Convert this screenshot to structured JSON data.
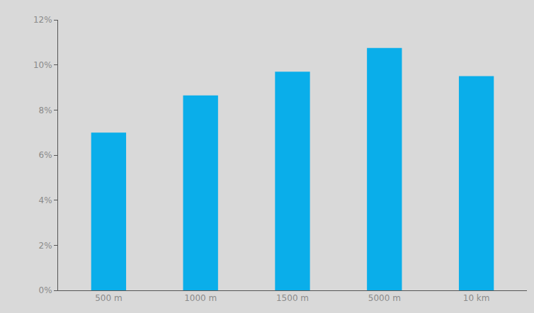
{
  "chart_data": {
    "type": "bar",
    "categories": [
      "500 m",
      "1000 m",
      "1500 m",
      "5000 m",
      "10 km"
    ],
    "values": [
      7.0,
      8.65,
      9.7,
      10.75,
      9.5
    ],
    "color": "#0aaeea",
    "ylim": [
      0,
      12
    ],
    "yticks": [
      {
        "value": 0,
        "label": "0%"
      },
      {
        "value": 2,
        "label": "2%"
      },
      {
        "value": 4,
        "label": "4%"
      },
      {
        "value": 6,
        "label": "6%"
      },
      {
        "value": 8,
        "label": "8%"
      },
      {
        "value": 10,
        "label": "10%"
      },
      {
        "value": 12,
        "label": "12%"
      }
    ],
    "grid": false
  }
}
